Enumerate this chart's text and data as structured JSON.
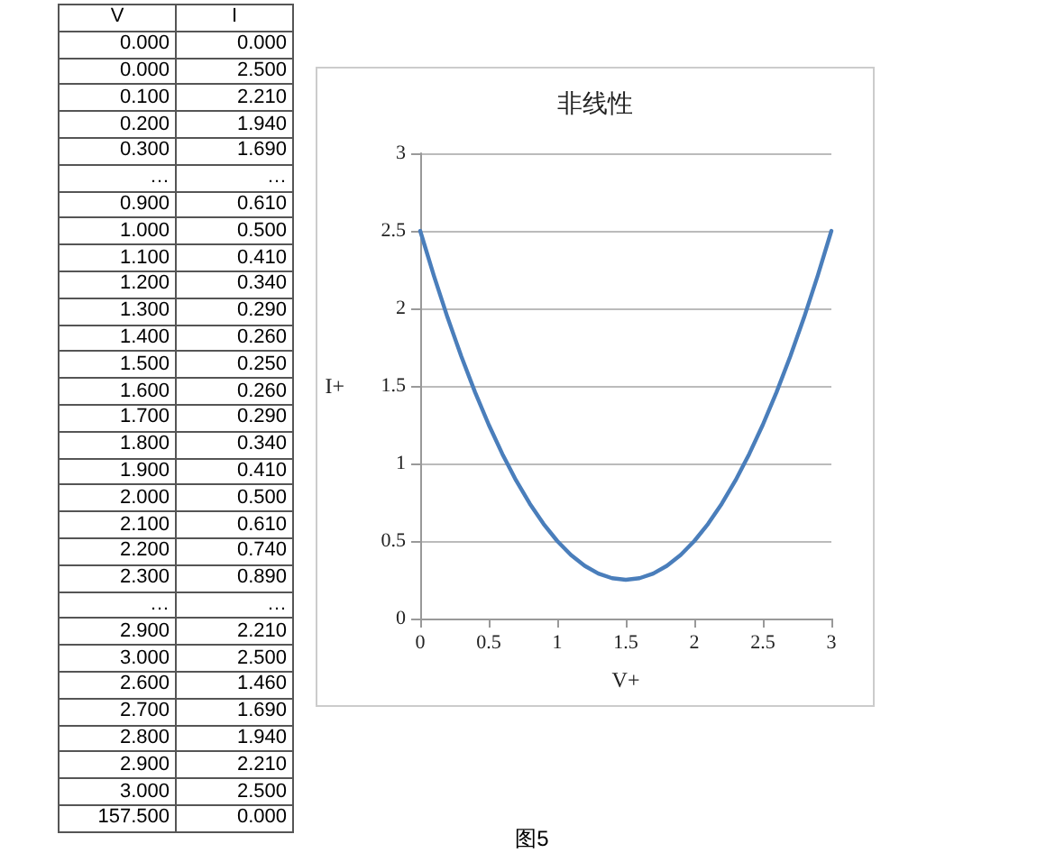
{
  "chart_data": [
    {
      "type": "other",
      "categories": [
        "V",
        "I"
      ],
      "cell_labels": [
        [
          "0.000",
          "0.000"
        ],
        [
          "0.000",
          "2.500"
        ],
        [
          "0.100",
          "2.210"
        ],
        [
          "0.200",
          "1.940"
        ],
        [
          "0.300",
          "1.690"
        ],
        [
          "…",
          "…"
        ],
        [
          "0.900",
          "0.610"
        ],
        [
          "1.000",
          "0.500"
        ],
        [
          "1.100",
          "0.410"
        ],
        [
          "1.200",
          "0.340"
        ],
        [
          "1.300",
          "0.290"
        ],
        [
          "1.400",
          "0.260"
        ],
        [
          "1.500",
          "0.250"
        ],
        [
          "1.600",
          "0.260"
        ],
        [
          "1.700",
          "0.290"
        ],
        [
          "1.800",
          "0.340"
        ],
        [
          "1.900",
          "0.410"
        ],
        [
          "2.000",
          "0.500"
        ],
        [
          "2.100",
          "0.610"
        ],
        [
          "2.200",
          "0.740"
        ],
        [
          "2.300",
          "0.890"
        ],
        [
          "…",
          "…"
        ],
        [
          "2.900",
          "2.210"
        ],
        [
          "3.000",
          "2.500"
        ],
        [
          "2.600",
          "1.460"
        ],
        [
          "2.700",
          "1.690"
        ],
        [
          "2.800",
          "1.940"
        ],
        [
          "2.900",
          "2.210"
        ],
        [
          "3.000",
          "2.500"
        ],
        [
          "157.500",
          "0.000"
        ]
      ]
    },
    {
      "type": "line",
      "title": "非线性",
      "xlabel": "V+",
      "ylabel": "I+",
      "annotations": [
        "图5"
      ],
      "x": [
        0,
        0.1,
        0.2,
        0.3,
        0.4,
        0.5,
        0.6,
        0.7,
        0.8,
        0.9,
        1,
        1.1,
        1.2,
        1.3,
        1.4,
        1.5,
        1.6,
        1.7,
        1.8,
        1.9,
        2,
        2.1,
        2.2,
        2.3,
        2.4,
        2.5,
        2.6,
        2.7,
        2.8,
        2.9,
        3
      ],
      "series": [
        {
          "color": "#4a7ebb",
          "values": [
            2.5,
            2.21,
            1.94,
            1.69,
            1.46,
            1.25,
            1.06,
            0.89,
            0.74,
            0.61,
            0.5,
            0.41,
            0.34,
            0.29,
            0.26,
            0.25,
            0.26,
            0.29,
            0.34,
            0.41,
            0.5,
            0.61,
            0.74,
            0.89,
            1.06,
            1.25,
            1.46,
            1.69,
            1.94,
            2.21,
            2.5
          ]
        }
      ],
      "xlim": [
        0,
        3
      ],
      "xticks": [
        0,
        0.5,
        1,
        1.5,
        2,
        2.5,
        3
      ],
      "ylim": [
        0,
        3
      ],
      "yticks": [
        0,
        0.5,
        1,
        1.5,
        2,
        2.5,
        3
      ],
      "grid": "y",
      "marker": "none",
      "line_style": "solid"
    }
  ]
}
